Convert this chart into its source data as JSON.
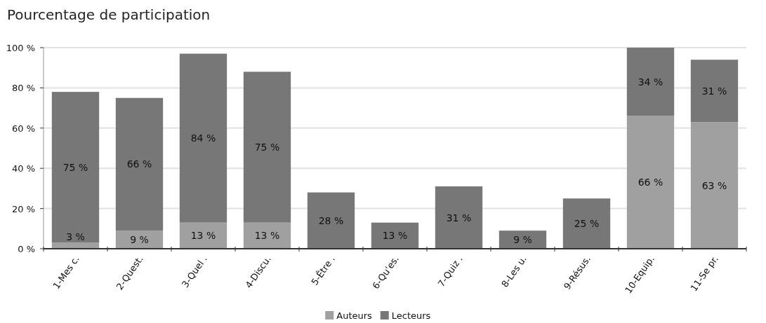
{
  "chart_data": {
    "type": "bar",
    "title": "Pourcentage de participation",
    "stacked": true,
    "categories": [
      "1-Mes c.",
      "2-Quest.",
      "3-Quel .",
      "4-Discu.",
      "5-Être .",
      "6-Qu'es.",
      "7-Quiz .",
      "8-Les u.",
      "9-Résus.",
      "10-Equip.",
      "11-Se pr."
    ],
    "series": [
      {
        "name": "Auteurs",
        "color": "#a0a0a0",
        "values": [
          3,
          9,
          13,
          13,
          null,
          null,
          null,
          null,
          null,
          66,
          63
        ],
        "value_labels": [
          "3 %",
          "9 %",
          "13 %",
          "13 %",
          null,
          null,
          null,
          null,
          null,
          "66 %",
          "63 %"
        ]
      },
      {
        "name": "Lecteurs",
        "color": "#777777",
        "values": [
          75,
          66,
          84,
          75,
          28,
          13,
          31,
          9,
          25,
          34,
          31
        ],
        "value_labels": [
          "75 %",
          "66 %",
          "84 %",
          "75 %",
          "28 %",
          "13 %",
          "31 %",
          "9 %",
          "25 %",
          "34 %",
          "31 %"
        ]
      }
    ],
    "ylim": [
      0,
      100
    ],
    "yticks": [
      {
        "value": 0,
        "label": "0 %"
      },
      {
        "value": 20,
        "label": "20 %"
      },
      {
        "value": 40,
        "label": "40 %"
      },
      {
        "value": 60,
        "label": "60 %"
      },
      {
        "value": 80,
        "label": "80 %"
      },
      {
        "value": 100,
        "label": "100 %"
      }
    ],
    "grid": "y",
    "legend": "bottom"
  }
}
